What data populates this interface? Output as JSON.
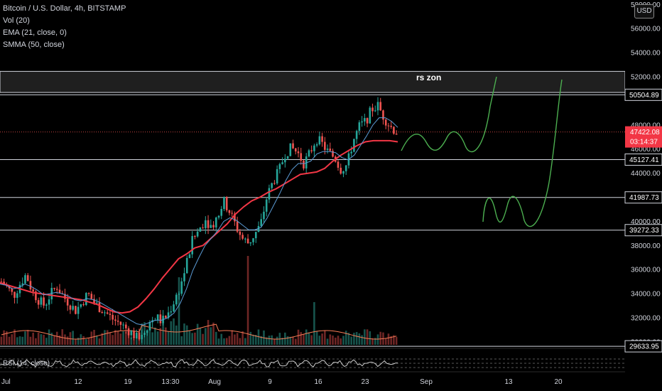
{
  "legend": {
    "title": "Bitcoin / U.S. Dollar, 4h, BITSTAMP",
    "vol": "Vol (20)",
    "ema": "EMA (21, close, 0)",
    "smma": "SMMA (50, close)",
    "rsi": "RSI (14, close)"
  },
  "currency": "USD",
  "annotation": "rs zon",
  "price_axis": {
    "ticks": [
      "58000.00",
      "56000.00",
      "54000.00",
      "52000.00",
      "48000.00",
      "46000.00",
      "44000.00",
      "40000.00",
      "38000.00",
      "36000.00",
      "34000.00",
      "32000.00",
      "30000.00"
    ],
    "tick_values": [
      58000,
      56000,
      54000,
      52000,
      48000,
      46000,
      44000,
      40000,
      38000,
      36000,
      34000,
      32000,
      30000
    ]
  },
  "level_lines": [
    {
      "value": 50504.89,
      "label": "50504.89"
    },
    {
      "value": 45127.41,
      "label": "45127.41"
    },
    {
      "value": 41987.73,
      "label": "41987.73"
    },
    {
      "value": 39272.33,
      "label": "39272.33"
    },
    {
      "value": 29633.95,
      "label": "29633.95"
    }
  ],
  "current_price": {
    "value": 47422.08,
    "label": "47422.08",
    "countdown": "03:14:37",
    "color": "#f23645"
  },
  "resistance_zone": {
    "from": 50700,
    "to": 52450
  },
  "time_axis": [
    "Jul",
    "12",
    "19",
    "13:30",
    "Aug",
    "9",
    "16",
    "23",
    "Sep",
    "13",
    "20"
  ],
  "colors": {
    "up": "#26a69a",
    "down": "#ef5350",
    "ema": "#5b9bd5",
    "smma": "#f23645",
    "vol_ma": "#f77c56",
    "projection": "#4caf50",
    "level": "#d1d4dc",
    "background": "#000000"
  },
  "chart_data": {
    "type": "candlestick",
    "symbol": "Bitcoin / U.S. Dollar",
    "interval": "4h",
    "exchange": "BITSTAMP",
    "y_range": [
      29000,
      58500
    ],
    "x": [
      "Jul",
      "12",
      "19",
      "13:30",
      "Aug",
      "9",
      "16",
      "23",
      "Sep",
      "13",
      "20"
    ],
    "close_path": [
      35000,
      34500,
      33800,
      34800,
      35600,
      34200,
      33500,
      33000,
      34000,
      34600,
      33800,
      33200,
      32600,
      33200,
      34000,
      33300,
      32800,
      32400,
      31900,
      31600,
      31200,
      30800,
      30300,
      30900,
      31600,
      32100,
      31700,
      32300,
      33400,
      34600,
      36500,
      38500,
      39300,
      40200,
      39600,
      40400,
      41700,
      40800,
      39600,
      38600,
      38200,
      38900,
      39700,
      42000,
      43300,
      44200,
      45700,
      46100,
      45700,
      44800,
      45700,
      46900,
      46400,
      45700,
      45300,
      44300,
      44700,
      46700,
      47900,
      48300,
      49300,
      49600,
      48600,
      47900,
      47400
    ],
    "ema_path": [
      34800,
      34700,
      34400,
      34500,
      34800,
      34600,
      34300,
      33900,
      34000,
      34100,
      34000,
      33800,
      33500,
      33400,
      33600,
      33500,
      33300,
      33000,
      32700,
      32400,
      32100,
      31800,
      31500,
      31400,
      31600,
      31800,
      31800,
      32000,
      32400,
      33200,
      34400,
      35900,
      37000,
      38000,
      38600,
      39200,
      40000,
      40300,
      40100,
      39700,
      39300,
      39300,
      39500,
      40300,
      41300,
      42300,
      43400,
      44300,
      44800,
      44800,
      45000,
      45600,
      45800,
      45800,
      45700,
      45300,
      45100,
      45500,
      46300,
      47100,
      48000,
      48600,
      48600,
      48300,
      47800
    ],
    "smma_path": [
      34900,
      34700,
      34500,
      34300,
      34100,
      34000,
      33900,
      33800,
      33700,
      33600,
      33500,
      33300,
      33100,
      32800,
      32500,
      32400,
      32500,
      32900,
      33600,
      34400,
      35300,
      36100,
      36900,
      37300,
      37800,
      38000,
      38600,
      39200,
      39800,
      40600,
      41200,
      41700,
      42000,
      42400,
      42700,
      43100,
      43500,
      43900,
      44000,
      44100,
      44400,
      45000,
      45500,
      45900,
      46300,
      46600,
      46700,
      46700,
      46700,
      46600
    ]
  }
}
